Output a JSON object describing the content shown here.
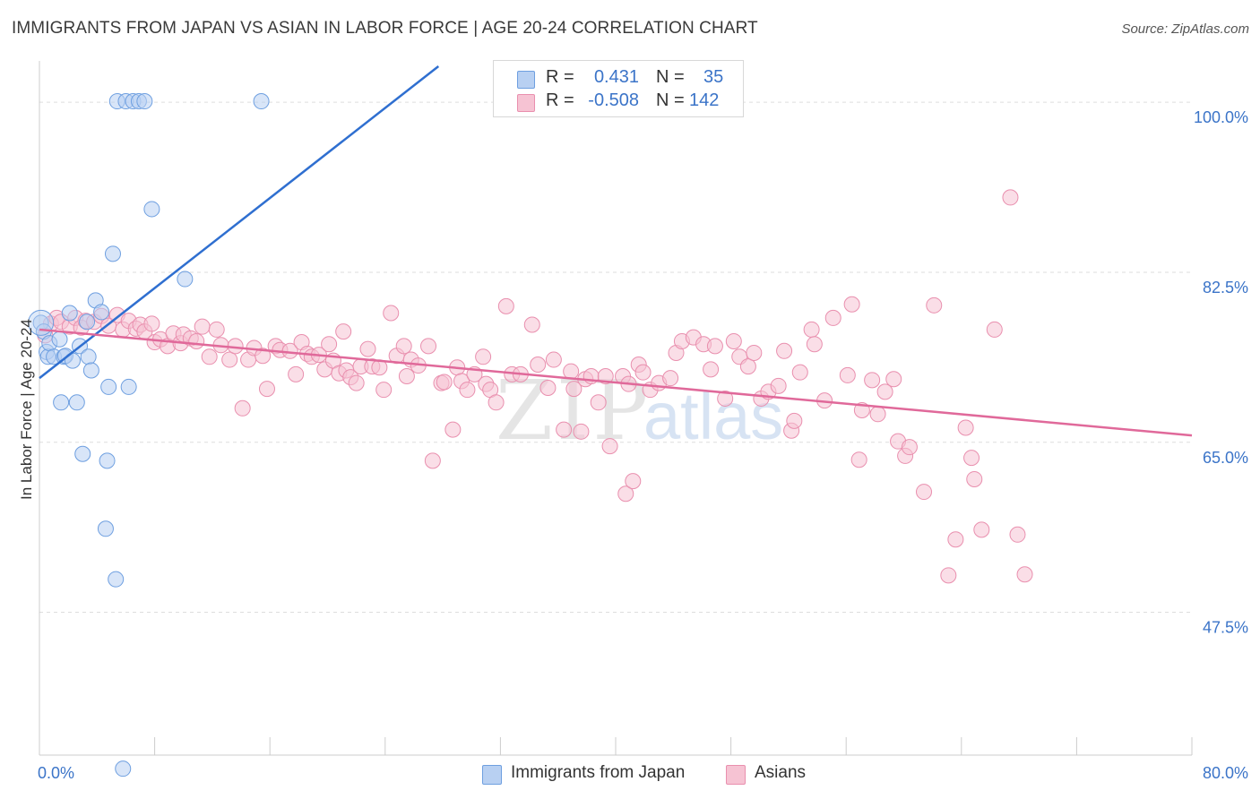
{
  "title": "IMMIGRANTS FROM JAPAN VS ASIAN IN LABOR FORCE | AGE 20-24 CORRELATION CHART",
  "source": "Source: ZipAtlas.com",
  "watermark": {
    "zip": "ZIP",
    "atlas": "atlas"
  },
  "colors": {
    "blue_fill": "#b8d0f2",
    "blue_stroke": "#6e9fe0",
    "blue_line": "#2f6fd0",
    "pink_fill": "#f6c3d3",
    "pink_stroke": "#e98fae",
    "pink_line": "#e0699a",
    "tick_text": "#3b74c8",
    "grid": "#dddddd"
  },
  "legend": {
    "r_label": "R =",
    "n_label": "N =",
    "rows": [
      {
        "r": "0.431",
        "n": "35"
      },
      {
        "r": "-0.508",
        "n": "142"
      }
    ]
  },
  "chart_data": {
    "type": "scatter",
    "title": "IMMIGRANTS FROM JAPAN VS ASIAN IN LABOR FORCE | AGE 20-24 CORRELATION CHART",
    "xlabel": "",
    "ylabel": "In Labor Force | Age 20-24",
    "xlim": [
      0,
      80
    ],
    "ylim": [
      32.8,
      103.7
    ],
    "x_tick_labels": [
      "0.0%",
      "80.0%"
    ],
    "y_ticks": [
      47.5,
      65.0,
      82.5,
      100.0
    ],
    "y_tick_labels": [
      "47.5%",
      "65.0%",
      "82.5%",
      "100.0%"
    ],
    "grid": "horizontal dashed",
    "legend_position": "top-center",
    "series": [
      {
        "name": "Immigrants from Japan",
        "color": "#6e9fe0",
        "r": 0.431,
        "n": 35,
        "trend": {
          "x": [
            0.0,
            27.7
          ],
          "y": [
            71.6,
            103.7
          ]
        },
        "points": [
          [
            0.1,
            77.3
          ],
          [
            0.3,
            76.4
          ],
          [
            0.5,
            74.3
          ],
          [
            0.6,
            73.8
          ],
          [
            0.7,
            75.2
          ],
          [
            1.0,
            73.8
          ],
          [
            1.4,
            75.6
          ],
          [
            1.5,
            69.1
          ],
          [
            1.7,
            73.8
          ],
          [
            1.8,
            73.9
          ],
          [
            2.1,
            78.3
          ],
          [
            2.3,
            73.4
          ],
          [
            2.6,
            69.1
          ],
          [
            2.8,
            74.9
          ],
          [
            3.0,
            63.8
          ],
          [
            3.3,
            77.4
          ],
          [
            3.4,
            73.8
          ],
          [
            3.6,
            72.4
          ],
          [
            3.9,
            79.6
          ],
          [
            4.3,
            78.4
          ],
          [
            4.6,
            56.1
          ],
          [
            4.7,
            63.1
          ],
          [
            4.8,
            70.7
          ],
          [
            5.1,
            84.4
          ],
          [
            5.3,
            50.9
          ],
          [
            5.8,
            31.4
          ],
          [
            5.4,
            100.1
          ],
          [
            6.0,
            100.1
          ],
          [
            6.2,
            70.7
          ],
          [
            6.5,
            100.1
          ],
          [
            6.9,
            100.1
          ],
          [
            7.3,
            100.1
          ],
          [
            7.8,
            89.0
          ],
          [
            10.1,
            81.8
          ],
          [
            15.4,
            100.1
          ]
        ]
      },
      {
        "name": "Asians",
        "color": "#e98fae",
        "r": -0.508,
        "n": 142,
        "trend": {
          "x": [
            0.0,
            80.0
          ],
          "y": [
            76.6,
            65.7
          ]
        },
        "points": [
          [
            0.4,
            76.0
          ],
          [
            0.8,
            77.2
          ],
          [
            1.2,
            77.8
          ],
          [
            1.5,
            77.4
          ],
          [
            2.1,
            76.9
          ],
          [
            2.5,
            77.8
          ],
          [
            2.9,
            76.8
          ],
          [
            3.2,
            77.5
          ],
          [
            3.8,
            77.4
          ],
          [
            4.3,
            78.0
          ],
          [
            4.8,
            77.0
          ],
          [
            5.4,
            78.1
          ],
          [
            5.8,
            76.6
          ],
          [
            6.2,
            77.5
          ],
          [
            6.7,
            76.7
          ],
          [
            7.0,
            77.1
          ],
          [
            7.3,
            76.4
          ],
          [
            7.8,
            77.2
          ],
          [
            8.0,
            75.3
          ],
          [
            8.4,
            75.6
          ],
          [
            8.9,
            74.9
          ],
          [
            9.3,
            76.2
          ],
          [
            9.8,
            75.2
          ],
          [
            10.0,
            76.1
          ],
          [
            10.5,
            75.7
          ],
          [
            10.9,
            75.4
          ],
          [
            11.3,
            76.9
          ],
          [
            11.8,
            73.8
          ],
          [
            12.3,
            76.6
          ],
          [
            12.6,
            75.0
          ],
          [
            13.2,
            73.5
          ],
          [
            13.6,
            74.9
          ],
          [
            14.1,
            68.5
          ],
          [
            14.5,
            73.5
          ],
          [
            14.9,
            74.7
          ],
          [
            15.5,
            73.9
          ],
          [
            15.8,
            70.5
          ],
          [
            16.4,
            74.9
          ],
          [
            16.7,
            74.5
          ],
          [
            17.4,
            74.4
          ],
          [
            17.8,
            72.0
          ],
          [
            18.2,
            75.3
          ],
          [
            18.6,
            74.1
          ],
          [
            18.9,
            73.8
          ],
          [
            19.4,
            74.0
          ],
          [
            19.8,
            72.5
          ],
          [
            20.1,
            75.1
          ],
          [
            20.4,
            73.4
          ],
          [
            20.8,
            72.1
          ],
          [
            21.1,
            76.4
          ],
          [
            21.3,
            72.4
          ],
          [
            21.6,
            71.7
          ],
          [
            22.0,
            71.1
          ],
          [
            22.3,
            72.8
          ],
          [
            22.8,
            74.6
          ],
          [
            23.1,
            72.8
          ],
          [
            23.6,
            72.7
          ],
          [
            23.9,
            70.4
          ],
          [
            24.4,
            78.3
          ],
          [
            24.8,
            73.9
          ],
          [
            25.3,
            74.9
          ],
          [
            25.5,
            71.8
          ],
          [
            25.8,
            73.5
          ],
          [
            26.3,
            72.9
          ],
          [
            27.0,
            74.9
          ],
          [
            27.3,
            63.1
          ],
          [
            27.9,
            71.1
          ],
          [
            28.1,
            71.2
          ],
          [
            28.7,
            66.3
          ],
          [
            29.0,
            72.7
          ],
          [
            29.3,
            71.3
          ],
          [
            29.7,
            70.4
          ],
          [
            30.2,
            72.0
          ],
          [
            30.8,
            73.8
          ],
          [
            31.0,
            71.0
          ],
          [
            31.3,
            70.4
          ],
          [
            31.7,
            69.1
          ],
          [
            32.4,
            79.0
          ],
          [
            32.8,
            72.0
          ],
          [
            33.4,
            72.0
          ],
          [
            34.2,
            77.1
          ],
          [
            34.6,
            73.0
          ],
          [
            35.3,
            70.6
          ],
          [
            35.7,
            73.5
          ],
          [
            36.4,
            66.3
          ],
          [
            36.9,
            72.3
          ],
          [
            37.1,
            70.5
          ],
          [
            37.6,
            66.1
          ],
          [
            37.9,
            71.5
          ],
          [
            38.3,
            71.8
          ],
          [
            38.8,
            69.1
          ],
          [
            39.3,
            71.8
          ],
          [
            39.6,
            64.6
          ],
          [
            40.5,
            71.8
          ],
          [
            40.7,
            59.7
          ],
          [
            40.9,
            71.0
          ],
          [
            41.2,
            61.0
          ],
          [
            41.6,
            73.0
          ],
          [
            41.9,
            72.2
          ],
          [
            42.4,
            70.4
          ],
          [
            43.0,
            71.1
          ],
          [
            43.8,
            71.6
          ],
          [
            44.2,
            74.2
          ],
          [
            44.6,
            75.4
          ],
          [
            45.4,
            75.8
          ],
          [
            46.1,
            75.1
          ],
          [
            46.6,
            72.5
          ],
          [
            46.9,
            74.9
          ],
          [
            47.6,
            69.5
          ],
          [
            48.2,
            75.4
          ],
          [
            48.6,
            73.8
          ],
          [
            49.2,
            72.8
          ],
          [
            49.6,
            74.2
          ],
          [
            50.1,
            69.5
          ],
          [
            50.6,
            70.2
          ],
          [
            51.3,
            70.8
          ],
          [
            51.7,
            74.4
          ],
          [
            52.2,
            66.2
          ],
          [
            52.4,
            67.2
          ],
          [
            52.8,
            72.2
          ],
          [
            53.6,
            76.6
          ],
          [
            53.8,
            75.1
          ],
          [
            54.5,
            69.3
          ],
          [
            55.1,
            77.8
          ],
          [
            56.1,
            71.9
          ],
          [
            56.4,
            79.2
          ],
          [
            56.9,
            63.2
          ],
          [
            57.1,
            68.3
          ],
          [
            57.8,
            71.4
          ],
          [
            58.2,
            67.9
          ],
          [
            58.7,
            70.2
          ],
          [
            59.3,
            71.5
          ],
          [
            59.6,
            65.1
          ],
          [
            60.1,
            63.6
          ],
          [
            60.4,
            64.5
          ],
          [
            61.4,
            59.9
          ],
          [
            62.1,
            79.1
          ],
          [
            63.1,
            51.3
          ],
          [
            63.6,
            55.0
          ],
          [
            64.3,
            66.5
          ],
          [
            64.7,
            63.4
          ],
          [
            64.9,
            61.2
          ],
          [
            65.4,
            56.0
          ],
          [
            66.3,
            76.6
          ],
          [
            67.4,
            90.2
          ],
          [
            67.9,
            55.5
          ],
          [
            68.4,
            51.4
          ]
        ]
      }
    ]
  }
}
